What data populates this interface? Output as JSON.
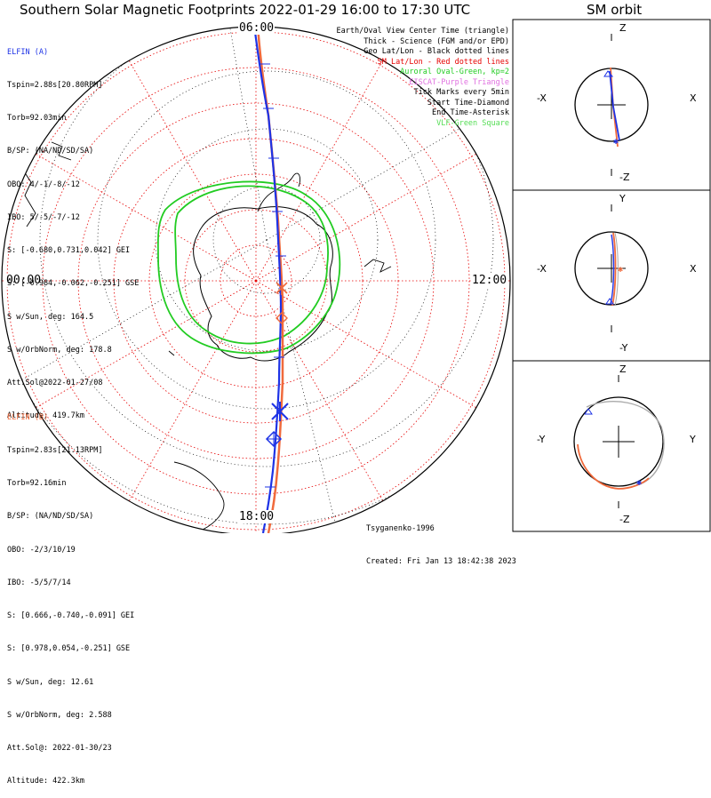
{
  "header": {
    "title": "Southern Solar Magnetic Footprints 2022-01-29 16:00 to 17:30 UTC",
    "orbit_title": "SM orbit"
  },
  "sat_a": {
    "name": "ELFIN (A)",
    "color": "#1e33e6",
    "lines": [
      "Tspin=2.88s[20.80RPM]",
      "Torb=92.03min",
      "B/SP: (NA/ND/SD/SA)",
      "OBO: 4/-1/-8/-12",
      "IBO: 5/-5/-7/-12",
      "S: [-0.680,0.731,0.042] GEI",
      "S: [-0.984,-0.062,-0.251] GSE",
      "S w/Sun, deg: 164.5",
      "S w/OrbNorm, deg: 178.8",
      "Att.Sol@2022-01-27/08",
      "Altitude: 419.7km"
    ]
  },
  "sat_b": {
    "name": "ELFIN (B)",
    "color": "#f06a3c",
    "lines": [
      "Tspin=2.83s[21.13RPM]",
      "Torb=92.16min",
      "B/SP: (NA/ND/SD/SA)",
      "OBO: -2/3/10/19",
      "IBO: -5/5/7/14",
      "S: [0.666,-0.740,-0.091] GEI",
      "S: [0.978,0.054,-0.251] GSE",
      "S w/Sun, deg: 12.61",
      "S w/OrbNorm, deg: 2.588",
      "Att.Sol@: 2022-01-30/23",
      "Altitude: 422.3km"
    ]
  },
  "legend": [
    {
      "text": "Earth/Oval View Center Time (triangle)",
      "color": "#000000"
    },
    {
      "text": "Thick - Science (FGM and/or EPD)",
      "color": "#000000"
    },
    {
      "text": "Geo Lat/Lon - Black dotted lines",
      "color": "#000000"
    },
    {
      "text": "SM Lat/Lon - Red dotted lines",
      "color": "#e60000"
    },
    {
      "text": "Auroral Oval-Green, kp=2",
      "color": "#22cc22"
    },
    {
      "text": "EISCAT-Purple Triangle",
      "color": "#e070e0"
    },
    {
      "text": "Tick Marks every 5min",
      "color": "#000000"
    },
    {
      "text": "Start Time-Diamond",
      "color": "#000000"
    },
    {
      "text": "End Time-Asterisk",
      "color": "#000000"
    },
    {
      "text": "VLF-Green Square",
      "color": "#55dd55"
    }
  ],
  "map_labels": {
    "top": "06:00",
    "left": "00:00",
    "right": "12:00",
    "bottom": "18:00"
  },
  "credit": {
    "author": "Tsyganenko-1996",
    "created": "Created: Fri Jan 13 18:42:38 2023"
  },
  "orbit_panels": [
    {
      "id": "xz",
      "top": "Z",
      "bottom": "-Z",
      "left": "-X",
      "right": "X"
    },
    {
      "id": "xy",
      "top": "Y",
      "bottom": "-Y",
      "left": "-X",
      "right": "X"
    },
    {
      "id": "yz",
      "top": "Z",
      "bottom": "-Z",
      "left": "-Y",
      "right": "Y"
    }
  ]
}
